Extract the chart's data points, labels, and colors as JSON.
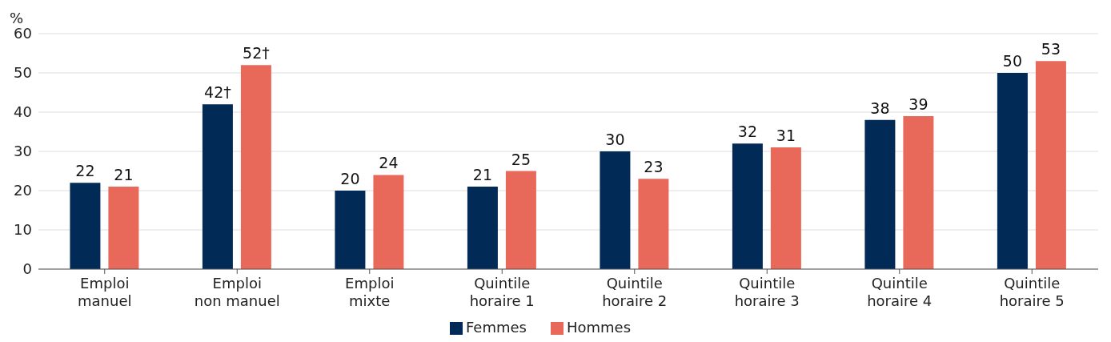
{
  "chart_data": {
    "type": "bar",
    "ylabel": "%",
    "categories": [
      "Emploi manuel",
      "Emploi non manuel",
      "Emploi mixte",
      "Quintile horaire 1",
      "Quintile horaire 2",
      "Quintile horaire 3",
      "Quintile horaire 4",
      "Quintile horaire 5"
    ],
    "series": [
      {
        "name": "Femmes",
        "color": "#012a57",
        "values": [
          22,
          42,
          20,
          21,
          30,
          32,
          38,
          50
        ],
        "value_labels": [
          "22",
          "42†",
          "20",
          "21",
          "30",
          "32",
          "38",
          "50"
        ]
      },
      {
        "name": "Hommes",
        "color": "#e8695a",
        "values": [
          21,
          52,
          24,
          25,
          23,
          31,
          39,
          53
        ],
        "value_labels": [
          "21",
          "52†",
          "24",
          "25",
          "23",
          "31",
          "39",
          "53"
        ]
      }
    ],
    "ylim": [
      0,
      60
    ],
    "yticks": [
      0,
      10,
      20,
      30,
      40,
      50,
      60
    ],
    "grid": "y",
    "legend": "bottom"
  }
}
